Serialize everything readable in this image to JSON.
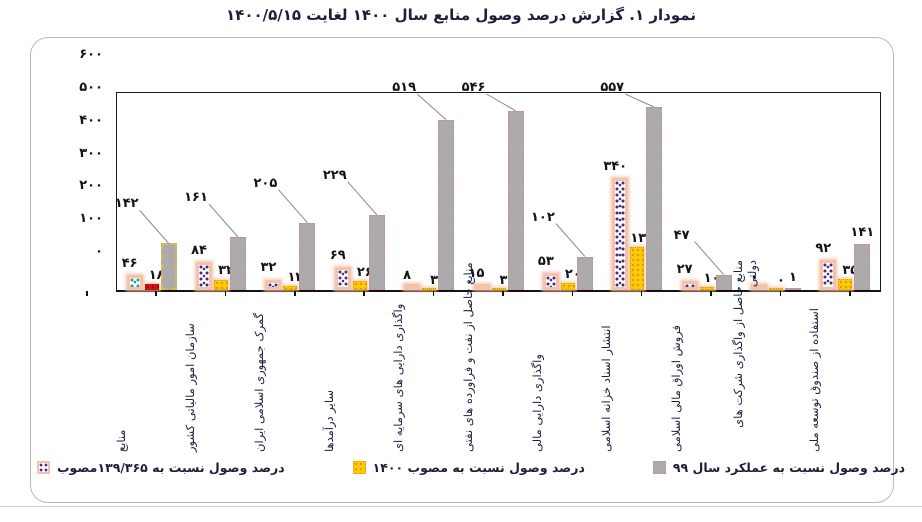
{
  "title": "نمودار ۱. گزارش درصد وصول منابع سال ۱۴۰۰ لغایت ۱۴۰۰/۵/۱۵",
  "colors": {
    "gray_bar": "#acaaab",
    "gray_bar_border": "#c89090",
    "yellow_bar": "#ffc908",
    "dotted_bar_dot": "#4a2d7f",
    "dotted_bar_dot_first_group": "#1f9e8e",
    "red_bar_first_group": "#e01212",
    "salmon_outline": "#f5c3ab",
    "first_group_gray_border": "#d9b94a",
    "title_text": "#1b1f3b",
    "leader_line": "#8a8a8a"
  },
  "chart_data": {
    "type": "bar",
    "title": "نمودار ۱. گزارش درصد وصول منابع سال ۱۴۰۰ لغایت ۱۴۰۰/۵/۱۵",
    "direction": "rtl",
    "grid": false,
    "legend_position": "bottom",
    "ylim": [
      0,
      600
    ],
    "yticks": [
      {
        "value": 600,
        "label": "۶۰۰"
      },
      {
        "value": 500,
        "label": "۵۰۰"
      },
      {
        "value": 400,
        "label": "۴۰۰"
      },
      {
        "value": 300,
        "label": "۳۰۰"
      },
      {
        "value": 200,
        "label": "۲۰۰"
      },
      {
        "value": 100,
        "label": "۱۰۰"
      },
      {
        "value": 0,
        "label": "۰"
      }
    ],
    "series": [
      {
        "name": "درصد وصول نسبت به ۱۳۹/۳۶۵مصوب",
        "swatch": "dotted",
        "style": "dotted-purple"
      },
      {
        "name": "درصد وصول نسبت به  مصوب ۱۴۰۰",
        "swatch": "yellow",
        "style": "solid-yellow"
      },
      {
        "name": "درصد وصول نسبت به عملکرد سال ۹۹",
        "swatch": "gray",
        "style": "solid-gray-dashed-border"
      }
    ],
    "groups": [
      {
        "category": "منابع",
        "values": [
          46,
          18,
          142
        ],
        "labels": [
          "۴۶",
          "۱۸",
          "۱۴۲"
        ],
        "callout": true,
        "highlight": true
      },
      {
        "category": "سازمان امور مالیاتی کشور",
        "values": [
          84,
          32,
          161
        ],
        "labels": [
          "۸۴",
          "۳۲",
          "۱۶۱"
        ],
        "callout": true,
        "highlight": false
      },
      {
        "category": "گمرک جمهوری اسلامی ایران",
        "values": [
          32,
          12,
          205
        ],
        "labels": [
          "۳۲",
          "۱۲",
          "۲۰۵"
        ],
        "callout": true,
        "highlight": false
      },
      {
        "category": "سایر درآمدها",
        "values": [
          69,
          26,
          229
        ],
        "labels": [
          "۶۹",
          "۲۶",
          "۲۲۹"
        ],
        "callout": true,
        "highlight": false
      },
      {
        "category": "واگذاری دارایی های سرمایه ای",
        "values": [
          8,
          3,
          519
        ],
        "labels": [
          "۸",
          "۳",
          "۵۱۹"
        ],
        "callout": true,
        "highlight": false
      },
      {
        "category": "منابع حاصل از نفت و فراورده های نفتی",
        "values": [
          15,
          3,
          546
        ],
        "labels": [
          "۱۵",
          "۳",
          "۵۴۶"
        ],
        "callout": true,
        "highlight": false
      },
      {
        "category": "واگذاری دارایی مالی",
        "values": [
          53,
          20,
          102
        ],
        "labels": [
          "۵۳",
          "۲۰",
          "۱۰۲"
        ],
        "callout": true,
        "highlight": false
      },
      {
        "category": "انتشار اسناد خزانه اسلامی",
        "values": [
          340,
          130,
          557
        ],
        "labels": [
          "۳۴۰",
          "۱۳۰",
          "۵۵۷"
        ],
        "callout": true,
        "highlight": false
      },
      {
        "category": "فروش اوراق مالی اسلامی",
        "values": [
          27,
          10,
          47
        ],
        "labels": [
          "۲۷",
          "۱۰",
          "۴۷"
        ],
        "callout": true,
        "highlight": false
      },
      {
        "category": "منابع حاصل از واگذاری شرکت های دولتی",
        "values": [
          0,
          0,
          1
        ],
        "labels": [
          "۰",
          "۰",
          "۱"
        ],
        "callout": false,
        "highlight": false
      },
      {
        "category": "استفاده از صندوق توسعه ملی",
        "values": [
          92,
          35,
          141
        ],
        "labels": [
          "۹۲",
          "۳۵",
          "۱۴۱"
        ],
        "callout": false,
        "highlight": false
      }
    ]
  }
}
